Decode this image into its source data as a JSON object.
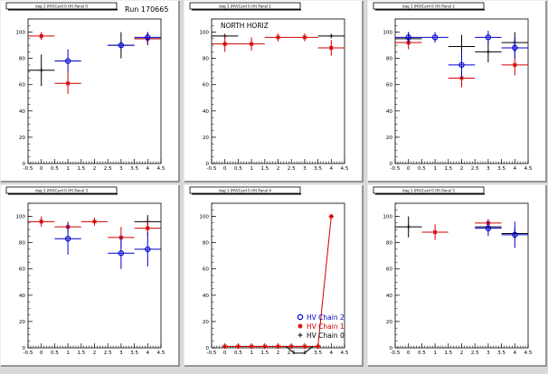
{
  "page": {
    "run_label": "Run 170665"
  },
  "chart_data": [
    {
      "type": "scatter",
      "title": "daq 1 (HV)Card 0 (H) Panel 0",
      "annotation": "",
      "xlim": [
        -0.5,
        4.5
      ],
      "ylim": [
        0,
        110
      ],
      "xticks": [
        -0.5,
        0,
        0.5,
        1,
        1.5,
        2,
        2.5,
        3,
        3.5,
        4,
        4.5
      ],
      "yticks": [
        0,
        20,
        40,
        60,
        80,
        100
      ],
      "series": [
        {
          "color": "#000000",
          "marker": "cross",
          "points": [
            {
              "x": 0,
              "y": 71,
              "ex": 0.5,
              "ey": 12
            },
            {
              "x": 3,
              "y": 90,
              "ex": 0.5,
              "ey": 10
            },
            {
              "x": 4,
              "y": 95,
              "ex": 0.5,
              "ey": 5
            }
          ]
        },
        {
          "color": "#d00000",
          "marker": "star",
          "points": [
            {
              "x": 0,
              "y": 97,
              "ex": 0.5,
              "ey": 3
            },
            {
              "x": 1,
              "y": 61,
              "ex": 0.5,
              "ey": 8
            },
            {
              "x": 4,
              "y": 95,
              "ex": 0.5,
              "ey": 4
            }
          ]
        },
        {
          "color": "#0000cc",
          "marker": "circle",
          "points": [
            {
              "x": 1,
              "y": 78,
              "ex": 0.5,
              "ey": 9
            },
            {
              "x": 3,
              "y": 90,
              "ex": 0.5,
              "ey": 3
            },
            {
              "x": 4,
              "y": 96,
              "ex": 0.5,
              "ey": 4
            }
          ]
        }
      ]
    },
    {
      "type": "scatter",
      "title": "daq 1 (HV)Card 0 (H) Panel 1",
      "annotation": "NORTH HORIZ",
      "xlim": [
        -0.5,
        4.5
      ],
      "ylim": [
        0,
        110
      ],
      "xticks": [
        -0.5,
        0,
        0.5,
        1,
        1.5,
        2,
        2.5,
        3,
        3.5,
        4,
        4.5
      ],
      "yticks": [
        0,
        20,
        40,
        60,
        80,
        100
      ],
      "series": [
        {
          "color": "#000000",
          "marker": "cross",
          "points": [
            {
              "x": 0,
              "y": 97,
              "ex": 0.5,
              "ey": 0
            },
            {
              "x": 4,
              "y": 97,
              "ex": 0.5,
              "ey": 0
            }
          ]
        },
        {
          "color": "#d00000",
          "marker": "star",
          "points": [
            {
              "x": 0,
              "y": 91,
              "ex": 0.5,
              "ey": 6
            },
            {
              "x": 1,
              "y": 91,
              "ex": 0.5,
              "ey": 5
            },
            {
              "x": 2,
              "y": 96,
              "ex": 0.5,
              "ey": 3
            },
            {
              "x": 3,
              "y": 96,
              "ex": 0.5,
              "ey": 3
            },
            {
              "x": 4,
              "y": 88,
              "ex": 0.5,
              "ey": 6
            }
          ]
        }
      ]
    },
    {
      "type": "scatter",
      "title": "daq 1 (HV)Card 0 (H) Panel 2",
      "annotation": "",
      "xlim": [
        -0.5,
        4.5
      ],
      "ylim": [
        0,
        110
      ],
      "xticks": [
        -0.5,
        0,
        0.5,
        1,
        1.5,
        2,
        2.5,
        3,
        3.5,
        4,
        4.5
      ],
      "yticks": [
        0,
        20,
        40,
        60,
        80,
        100
      ],
      "series": [
        {
          "color": "#000000",
          "marker": "cross",
          "points": [
            {
              "x": 0,
              "y": 95,
              "ex": 0.5,
              "ey": 5
            },
            {
              "x": 2,
              "y": 89,
              "ex": 0.5,
              "ey": 9
            },
            {
              "x": 3,
              "y": 85,
              "ex": 0.5,
              "ey": 8
            },
            {
              "x": 4,
              "y": 92,
              "ex": 0.5,
              "ey": 8
            }
          ]
        },
        {
          "color": "#d00000",
          "marker": "star",
          "points": [
            {
              "x": 0,
              "y": 92,
              "ex": 0.5,
              "ey": 5
            },
            {
              "x": 2,
              "y": 65,
              "ex": 0.5,
              "ey": 7
            },
            {
              "x": 4,
              "y": 75,
              "ex": 0.5,
              "ey": 8
            }
          ]
        },
        {
          "color": "#0000cc",
          "marker": "circle",
          "points": [
            {
              "x": 0,
              "y": 96,
              "ex": 0.5,
              "ey": 4
            },
            {
              "x": 1,
              "y": 96,
              "ex": 0.5,
              "ey": 4
            },
            {
              "x": 2,
              "y": 75,
              "ex": 0.5,
              "ey": 10
            },
            {
              "x": 3,
              "y": 96,
              "ex": 0.5,
              "ey": 5
            },
            {
              "x": 4,
              "y": 88,
              "ex": 0.5,
              "ey": 8
            }
          ]
        }
      ]
    },
    {
      "type": "scatter",
      "title": "daq 1 (HV)Card 0 (H) Panel 3",
      "annotation": "",
      "xlim": [
        -0.5,
        4.5
      ],
      "ylim": [
        0,
        110
      ],
      "xticks": [
        -0.5,
        0,
        0.5,
        1,
        1.5,
        2,
        2.5,
        3,
        3.5,
        4,
        4.5
      ],
      "yticks": [
        0,
        20,
        40,
        60,
        80,
        100
      ],
      "series": [
        {
          "color": "#000000",
          "marker": "cross",
          "points": [
            {
              "x": 4,
              "y": 96,
              "ex": 0.5,
              "ey": 5
            }
          ]
        },
        {
          "color": "#d00000",
          "marker": "star",
          "points": [
            {
              "x": 0,
              "y": 96,
              "ex": 0.5,
              "ey": 4
            },
            {
              "x": 1,
              "y": 92,
              "ex": 0.5,
              "ey": 4
            },
            {
              "x": 2,
              "y": 96,
              "ex": 0.5,
              "ey": 3
            },
            {
              "x": 3,
              "y": 84,
              "ex": 0.5,
              "ey": 8
            },
            {
              "x": 4,
              "y": 91,
              "ex": 0.5,
              "ey": 6
            }
          ]
        },
        {
          "color": "#0000cc",
          "marker": "circle",
          "points": [
            {
              "x": 1,
              "y": 83,
              "ex": 0.5,
              "ey": 12
            },
            {
              "x": 3,
              "y": 72,
              "ex": 0.5,
              "ey": 12
            },
            {
              "x": 4,
              "y": 75,
              "ex": 0.5,
              "ey": 13
            }
          ]
        }
      ]
    },
    {
      "type": "line",
      "title": "daq 1 (HV)Card 0 (H) Panel 4",
      "annotation": "",
      "xlim": [
        -0.5,
        4.5
      ],
      "ylim": [
        0,
        110
      ],
      "xticks": [
        -0.5,
        0,
        0.5,
        1,
        1.5,
        2,
        2.5,
        3,
        3.5,
        4,
        4.5
      ],
      "yticks": [
        0,
        20,
        40,
        60,
        80,
        100
      ],
      "series": [
        {
          "color": "#d00000",
          "marker": "star",
          "connect": true,
          "points": [
            {
              "x": 0,
              "y": 1,
              "ex": 0,
              "ey": 0
            },
            {
              "x": 0.5,
              "y": 1,
              "ex": 0,
              "ey": 0
            },
            {
              "x": 1,
              "y": 1,
              "ex": 0,
              "ey": 0
            },
            {
              "x": 1.5,
              "y": 1,
              "ex": 0,
              "ey": 0
            },
            {
              "x": 2,
              "y": 1,
              "ex": 0,
              "ey": 0
            },
            {
              "x": 2.5,
              "y": 1,
              "ex": 0,
              "ey": 0
            },
            {
              "x": 3,
              "y": 1,
              "ex": 0,
              "ey": 0
            },
            {
              "x": 3.5,
              "y": 1,
              "ex": 0,
              "ey": 0
            },
            {
              "x": 4,
              "y": 100,
              "ex": 0,
              "ey": 0
            }
          ]
        },
        {
          "color": "#000000",
          "marker": "none",
          "connect": true,
          "points": [
            {
              "x": 2.3,
              "y": 1,
              "ex": 0,
              "ey": 0
            },
            {
              "x": 2.6,
              "y": -4,
              "ex": 0,
              "ey": 0
            },
            {
              "x": 3.0,
              "y": -4,
              "ex": 0,
              "ey": 0
            },
            {
              "x": 3.3,
              "y": 1,
              "ex": 0,
              "ey": 0
            }
          ]
        }
      ],
      "legend": {
        "placement": "bottom-right",
        "entries": [
          {
            "label": "HV Chain 2",
            "color": "#0000cc",
            "marker": "circle"
          },
          {
            "label": "HV Chain 1",
            "color": "#d00000",
            "marker": "star"
          },
          {
            "label": "HV Chain 0",
            "color": "#000000",
            "marker": "cross"
          }
        ]
      }
    },
    {
      "type": "scatter",
      "title": "daq 1 (HV)Card 0 (H) Panel 5",
      "annotation": "",
      "xlim": [
        -0.5,
        4.5
      ],
      "ylim": [
        0,
        110
      ],
      "xticks": [
        -0.5,
        0,
        0.5,
        1,
        1.5,
        2,
        2.5,
        3,
        3.5,
        4,
        4.5
      ],
      "yticks": [
        0,
        20,
        40,
        60,
        80,
        100
      ],
      "series": [
        {
          "color": "#000000",
          "marker": "cross",
          "points": [
            {
              "x": 0,
              "y": 92,
              "ex": 0.5,
              "ey": 8
            },
            {
              "x": 3,
              "y": 92,
              "ex": 0.5,
              "ey": 4
            },
            {
              "x": 4,
              "y": 87,
              "ex": 0.5,
              "ey": 4
            }
          ]
        },
        {
          "color": "#d00000",
          "marker": "star",
          "points": [
            {
              "x": 1,
              "y": 88,
              "ex": 0.5,
              "ey": 6
            },
            {
              "x": 3,
              "y": 95,
              "ex": 0.5,
              "ey": 3
            }
          ]
        },
        {
          "color": "#0000cc",
          "marker": "circle",
          "points": [
            {
              "x": 3,
              "y": 91,
              "ex": 0.5,
              "ey": 6
            },
            {
              "x": 4,
              "y": 86,
              "ex": 0.5,
              "ey": 10
            }
          ]
        }
      ]
    }
  ]
}
